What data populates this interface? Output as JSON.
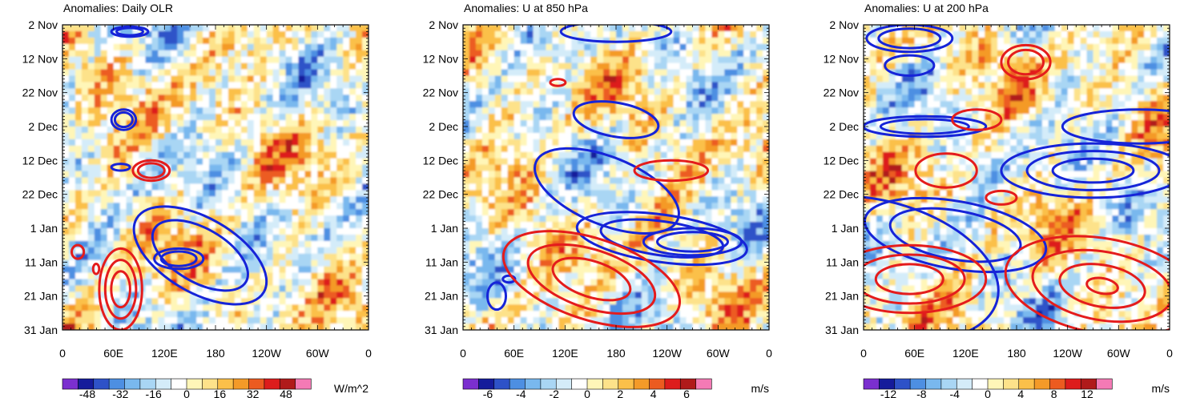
{
  "chart_data": [
    {
      "type": "heatmap",
      "title": "Anomalies: Daily OLR",
      "xlabel": "",
      "ylabel": "",
      "x_ticks": [
        "0",
        "60E",
        "120E",
        "180",
        "120W",
        "60W",
        "0"
      ],
      "y_ticks": [
        "2 Nov",
        "12 Nov",
        "22 Nov",
        "2 Dec",
        "12 Dec",
        "22 Dec",
        "1 Jan",
        "11 Jan",
        "21 Jan",
        "31 Jan"
      ],
      "xlim": [
        0,
        360
      ],
      "ylim_days": [
        0,
        90
      ],
      "colorbar": {
        "labels": [
          "-48",
          "-32",
          "-16",
          "0",
          "16",
          "32",
          "48"
        ],
        "units": "W/m^2",
        "range": [
          -60,
          60
        ]
      },
      "contours": {
        "blue": [
          {
            "cx": 22,
            "cy": 2,
            "rx": 6,
            "ry": 1.5,
            "levels": 2
          },
          {
            "cx": 20,
            "cy": 28,
            "rx": 4,
            "ry": 3,
            "levels": 2
          },
          {
            "cx": 19,
            "cy": 42,
            "rx": 3,
            "ry": 1,
            "levels": 1
          },
          {
            "cx": 45,
            "cy": 68,
            "rx": 24,
            "ry": 11,
            "rot": 30,
            "levels": 2
          },
          {
            "cx": 38,
            "cy": 69,
            "rx": 8,
            "ry": 3,
            "levels": 2
          }
        ],
        "red": [
          {
            "cx": 29,
            "cy": 43,
            "rx": 6,
            "ry": 3,
            "levels": 2
          },
          {
            "cx": 5,
            "cy": 67,
            "rx": 2,
            "ry": 2,
            "levels": 1
          },
          {
            "cx": 19,
            "cy": 78,
            "rx": 7,
            "ry": 12,
            "levels": 3
          },
          {
            "cx": 11,
            "cy": 72,
            "rx": 1,
            "ry": 1.5,
            "levels": 1
          }
        ]
      }
    },
    {
      "type": "heatmap",
      "title": "Anomalies: U at 850 hPa",
      "xlabel": "",
      "ylabel": "",
      "x_ticks": [
        "0",
        "60E",
        "120E",
        "180",
        "120W",
        "60W",
        "0"
      ],
      "y_ticks": [
        "2 Nov",
        "12 Nov",
        "22 Nov",
        "2 Dec",
        "12 Dec",
        "22 Dec",
        "1 Jan",
        "11 Jan",
        "21 Jan",
        "31 Jan"
      ],
      "xlim": [
        0,
        360
      ],
      "ylim_days": [
        0,
        90
      ],
      "colorbar": {
        "labels": [
          "-6",
          "-4",
          "-2",
          "0",
          "2",
          "4",
          "6"
        ],
        "units": "m/s",
        "range": [
          -7.5,
          7.5
        ]
      },
      "contours": {
        "blue": [
          {
            "cx": 50,
            "cy": 2,
            "rx": 18,
            "ry": 3,
            "levels": 1
          },
          {
            "cx": 50,
            "cy": 28,
            "rx": 14,
            "ry": 5,
            "rot": 10,
            "levels": 1
          },
          {
            "cx": 47,
            "cy": 49,
            "rx": 25,
            "ry": 10,
            "rot": 22,
            "levels": 1
          },
          {
            "cx": 65,
            "cy": 63,
            "rx": 28,
            "ry": 7,
            "rot": 8,
            "levels": 2
          },
          {
            "cx": 75,
            "cy": 64,
            "rx": 16,
            "ry": 4,
            "levels": 2
          },
          {
            "cx": 11,
            "cy": 80,
            "rx": 3,
            "ry": 4,
            "levels": 1
          },
          {
            "cx": 15,
            "cy": 75,
            "rx": 2,
            "ry": 1,
            "levels": 1
          }
        ],
        "red": [
          {
            "cx": 31,
            "cy": 17,
            "rx": 2.5,
            "ry": 1,
            "levels": 1
          },
          {
            "cx": 68,
            "cy": 43,
            "rx": 12,
            "ry": 3,
            "levels": 1
          },
          {
            "cx": 42,
            "cy": 75,
            "rx": 30,
            "ry": 12,
            "rot": 18,
            "levels": 3
          }
        ]
      }
    },
    {
      "type": "heatmap",
      "title": "Anomalies: U at 200 hPa",
      "xlabel": "",
      "ylabel": "",
      "x_ticks": [
        "0",
        "60E",
        "120E",
        "180",
        "120W",
        "60W",
        "0"
      ],
      "y_ticks": [
        "2 Nov",
        "12 Nov",
        "22 Nov",
        "2 Dec",
        "12 Dec",
        "22 Dec",
        "1 Jan",
        "11 Jan",
        "21 Jan",
        "31 Jan"
      ],
      "xlim": [
        0,
        360
      ],
      "ylim_days": [
        0,
        90
      ],
      "colorbar": {
        "labels": [
          "-12",
          "-8",
          "-4",
          "0",
          "4",
          "8",
          "12"
        ],
        "units": "m/s",
        "range": [
          -15,
          15
        ]
      },
      "contours": {
        "blue": [
          {
            "cx": 15,
            "cy": 4,
            "rx": 14,
            "ry": 4,
            "levels": 2
          },
          {
            "cx": 15,
            "cy": 12,
            "rx": 8,
            "ry": 3,
            "levels": 1
          },
          {
            "cx": 20,
            "cy": 30,
            "rx": 20,
            "ry": 3,
            "levels": 2
          },
          {
            "cx": 90,
            "cy": 30,
            "rx": 25,
            "ry": 5,
            "levels": 1
          },
          {
            "cx": 75,
            "cy": 43,
            "rx": 30,
            "ry": 8,
            "levels": 3
          },
          {
            "cx": 30,
            "cy": 62,
            "rx": 30,
            "ry": 10,
            "rot": 10,
            "levels": 2
          },
          {
            "cx": 5,
            "cy": 72,
            "rx": 40,
            "ry": 20,
            "rot": 15,
            "levels": 1
          }
        ],
        "red": [
          {
            "cx": 53,
            "cy": 11,
            "rx": 8,
            "ry": 5,
            "levels": 2
          },
          {
            "cx": 37,
            "cy": 28,
            "rx": 8,
            "ry": 3,
            "levels": 1
          },
          {
            "cx": 27,
            "cy": 43,
            "rx": 10,
            "ry": 5,
            "levels": 1
          },
          {
            "cx": 45,
            "cy": 51,
            "rx": 5,
            "ry": 2,
            "levels": 1
          },
          {
            "cx": 78,
            "cy": 77,
            "rx": 32,
            "ry": 14,
            "rot": 10,
            "levels": 4
          },
          {
            "cx": 15,
            "cy": 75,
            "rx": 25,
            "ry": 10,
            "levels": 3
          }
        ]
      }
    }
  ],
  "colors": {
    "palette": [
      "#7b2fcf",
      "#151b9b",
      "#2e52c8",
      "#4d8fe2",
      "#79b8ee",
      "#a9d6f4",
      "#d4ecf9",
      "#ffffff",
      "#fff6b8",
      "#fde28a",
      "#fbc04a",
      "#f49a28",
      "#ec5b20",
      "#dd1c1c",
      "#b01a1a",
      "#f47ab5"
    ],
    "blue_contour": "#1624d8",
    "red_contour": "#e41c1c"
  }
}
